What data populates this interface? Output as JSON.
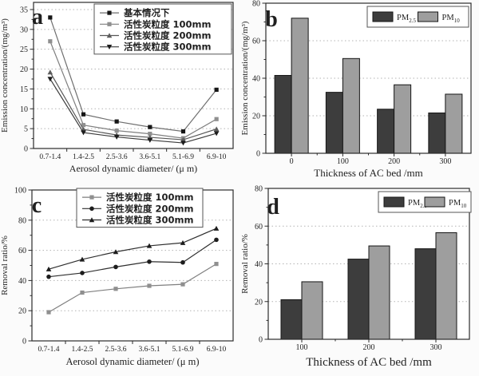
{
  "figure": {
    "background": "#fbfbfb",
    "frame_color": "#2b2b2b",
    "grid_color": "#b3b3b3",
    "text_color": "#1f1f1f",
    "bar_dark": "#3d3d3d",
    "bar_gray": "#9e9e9e"
  },
  "chart_data": [
    {
      "id": "a",
      "type": "line",
      "panel_label": "a",
      "xlabel": "Aerosol dynamic diameter/ (μ m)",
      "ylabel": "Emission concentration/(mg/m³)",
      "categories": [
        "0.7-1.4",
        "1.4-2.5",
        "2.5-3.6",
        "3.6-5.1",
        "5.1-6.9",
        "6.9-10"
      ],
      "ylim": [
        0,
        35
      ],
      "yticks": [
        0,
        5,
        10,
        15,
        20,
        25,
        30,
        35
      ],
      "grid": "horizontal-dotted",
      "legend_position": "top-right",
      "series": [
        {
          "name": "基本情况下",
          "marker": "square",
          "marker_color": "#161616",
          "line_color": "#6e6e6e",
          "values": [
            33.0,
            8.6,
            6.8,
            5.4,
            4.3,
            14.8
          ]
        },
        {
          "name": "活性炭粒度 100mm",
          "marker": "square",
          "marker_color": "#8f8f8f",
          "line_color": "#7f7f7f",
          "values": [
            27.0,
            5.9,
            4.5,
            3.7,
            2.6,
            7.4
          ]
        },
        {
          "name": "活性炭粒度 200mm",
          "marker": "triangle-up",
          "marker_color": "#5d5d5d",
          "line_color": "#575757",
          "values": [
            19.2,
            4.8,
            3.4,
            2.8,
            2.2,
            4.9
          ]
        },
        {
          "name": "活性炭粒度 300mm",
          "marker": "triangle-down",
          "marker_color": "#1d1d1d",
          "line_color": "#3c3c3c",
          "values": [
            17.5,
            4.0,
            2.9,
            2.1,
            1.4,
            3.8
          ]
        }
      ]
    },
    {
      "id": "b",
      "type": "bar",
      "panel_label": "b",
      "xlabel": "Thickness of AC bed /mm",
      "ylabel": "Emission concentration/(mg/m³)",
      "categories": [
        "0",
        "100",
        "200",
        "300"
      ],
      "ylim": [
        0,
        80
      ],
      "yticks": [
        0,
        20,
        40,
        60,
        80
      ],
      "grid": "horizontal-dotted",
      "legend_position": "top-right",
      "series": [
        {
          "name": "PM2.5",
          "label_main": "PM",
          "label_sub": "2.5",
          "color": "#3d3d3d",
          "values": [
            41.5,
            32.5,
            23.5,
            21.5
          ]
        },
        {
          "name": "PM10",
          "label_main": "PM",
          "label_sub": "10",
          "color": "#9e9e9e",
          "values": [
            72.0,
            50.5,
            36.5,
            31.5
          ]
        }
      ]
    },
    {
      "id": "c",
      "type": "line",
      "panel_label": "c",
      "xlabel": "Aerosol dynamic diameter/ (μ m)",
      "ylabel": "Removal ratio/%",
      "categories": [
        "0.7-1.4",
        "1.4-2.5",
        "2.5-3.6",
        "3.6-5.1",
        "5.1-6.9",
        "6.9-10"
      ],
      "ylim": [
        0,
        100
      ],
      "yticks": [
        0,
        20,
        40,
        60,
        80,
        100
      ],
      "grid": "horizontal-dotted",
      "legend_position": "top-center",
      "series": [
        {
          "name": "活性炭粒度 100mm",
          "marker": "square",
          "marker_color": "#8f8f8f",
          "line_color": "#7f7f7f",
          "values": [
            19.0,
            32.0,
            34.5,
            36.5,
            37.5,
            51.0
          ]
        },
        {
          "name": "活性炭粒度 200mm",
          "marker": "circle",
          "marker_color": "#1d1d1d",
          "line_color": "#2f2f2f",
          "values": [
            42.5,
            45.0,
            49.0,
            52.5,
            52.0,
            67.0
          ]
        },
        {
          "name": "活性炭粒度 300mm",
          "marker": "triangle-up",
          "marker_color": "#1d1d1d",
          "line_color": "#2f2f2f",
          "values": [
            47.5,
            54.0,
            59.0,
            63.0,
            65.0,
            74.5
          ]
        }
      ]
    },
    {
      "id": "d",
      "type": "bar",
      "panel_label": "d",
      "xlabel": "Thickness of AC bed /mm",
      "ylabel": "Removal ratio/%",
      "categories": [
        "100",
        "200",
        "300"
      ],
      "ylim": [
        0,
        80
      ],
      "yticks": [
        0,
        20,
        40,
        60,
        80
      ],
      "grid": "horizontal-dotted",
      "legend_position": "top-right",
      "series": [
        {
          "name": "PM2.5",
          "label_main": "PM",
          "label_sub": "2.5",
          "color": "#3d3d3d",
          "values": [
            21.0,
            42.5,
            48.0
          ]
        },
        {
          "name": "PM10",
          "label_main": "PM",
          "label_sub": "10",
          "color": "#9e9e9e",
          "values": [
            30.5,
            49.5,
            56.5
          ]
        }
      ]
    }
  ]
}
